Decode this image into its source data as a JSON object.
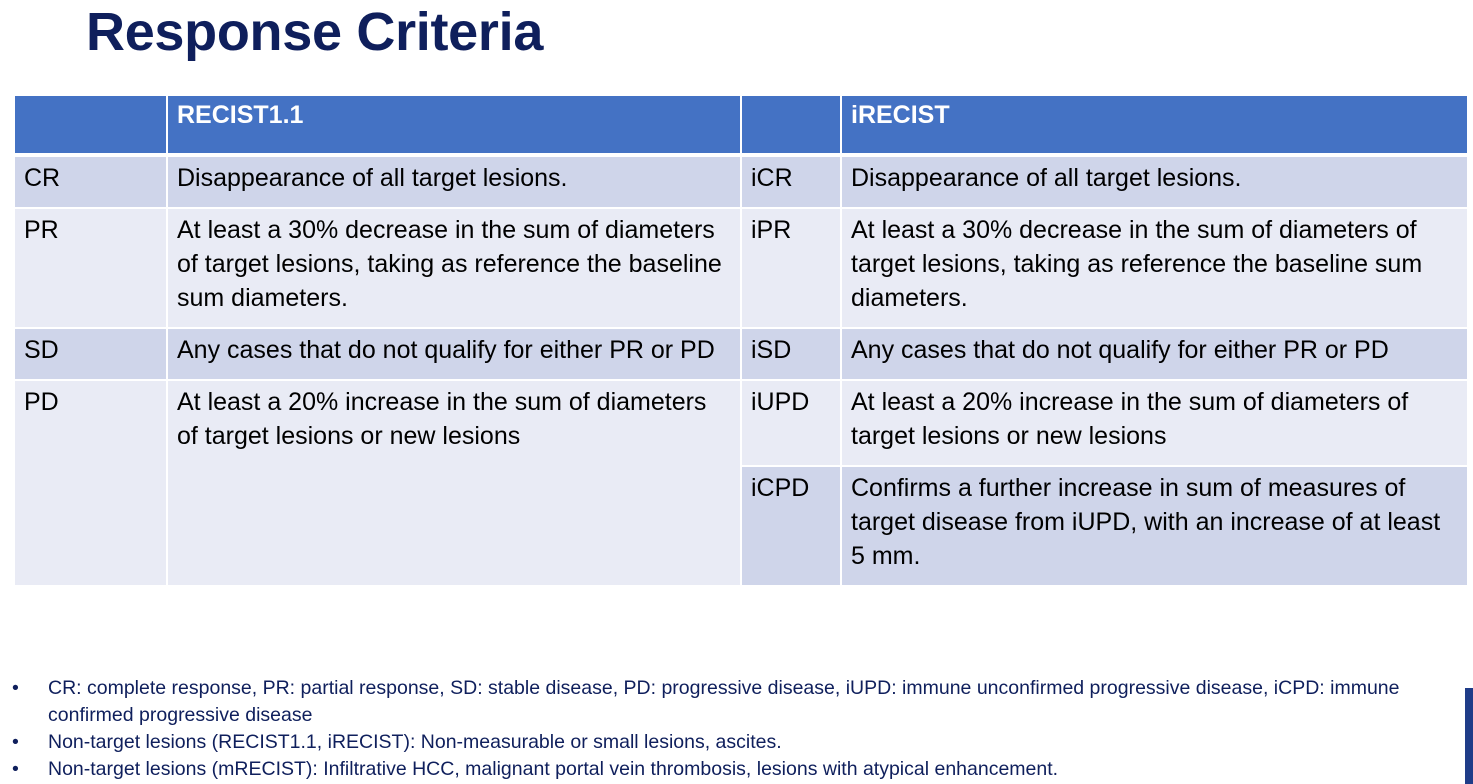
{
  "title": "Response Criteria",
  "table": {
    "header": {
      "col1_label": "",
      "col2_label": "RECIST1.1",
      "col3_label": "",
      "col4_label": "iRECIST"
    },
    "rows": [
      {
        "recist_abbr": "CR",
        "recist_desc": "Disappearance of all target lesions.",
        "irecist_abbr": "iCR",
        "irecist_desc": "Disappearance of all target lesions."
      },
      {
        "recist_abbr": "PR",
        "recist_desc": "At least a 30% decrease in the sum of diameters of target lesions, taking as reference the baseline sum diameters.",
        "irecist_abbr": "iPR",
        "irecist_desc": "At least a 30% decrease in the sum of diameters of target lesions, taking as reference the baseline sum diameters."
      },
      {
        "recist_abbr": "SD",
        "recist_desc": "Any cases that do not qualify for either PR or PD",
        "irecist_abbr": "iSD",
        "irecist_desc": "Any cases that do not qualify for either PR or PD"
      },
      {
        "recist_abbr": "PD",
        "recist_desc": "At least a 20% increase in the sum of diameters of target lesions or new lesions",
        "irecist_abbr": "iUPD",
        "irecist_desc": "At least a 20% increase in the sum of diameters of target lesions or new lesions"
      },
      {
        "irecist_abbr": "iCPD",
        "irecist_desc": "Confirms a further increase in sum of measures of target disease from iUPD, with an increase of at least 5 mm."
      }
    ]
  },
  "notes": [
    "CR: complete response, PR: partial response, SD: stable disease, PD: progressive disease, iUPD: immune unconfirmed progressive disease, iCPD: immune confirmed progressive disease",
    "Non-target lesions (RECIST1.1, iRECIST): Non-measurable or small lesions, ascites.",
    "Non-target lesions (mRECIST): Infiltrative HCC, malignant portal vein thrombosis, lesions with atypical enhancement."
  ],
  "colors": {
    "title": "#0f1f5c",
    "header_bg": "#4472c4",
    "row_dark": "#cfd5ea",
    "row_light": "#e9ebf5",
    "notes_text": "#0f1f5c"
  }
}
